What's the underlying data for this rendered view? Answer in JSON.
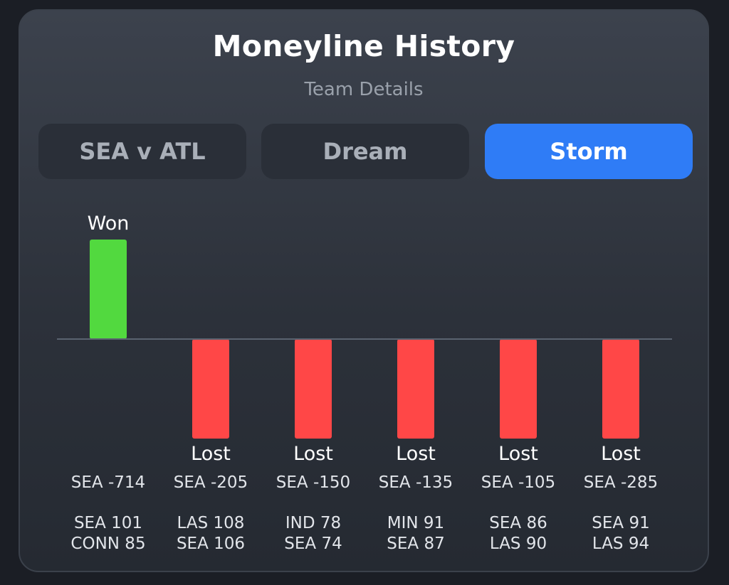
{
  "header": {
    "title": "Moneyline History",
    "subtitle": "Team Details"
  },
  "tabs": [
    {
      "label": "SEA v ATL",
      "active": false
    },
    {
      "label": "Dream",
      "active": false
    },
    {
      "label": "Storm",
      "active": true
    }
  ],
  "colors": {
    "won": "#52d93f",
    "lost": "#ff4747",
    "baseline": "#5a6370",
    "accent": "#2f7cf6"
  },
  "chart_data": {
    "type": "bar",
    "categories": [
      "SEA -714",
      "SEA -205",
      "SEA -150",
      "SEA -135",
      "SEA -105",
      "SEA -285"
    ],
    "values": [
      1,
      -1,
      -1,
      -1,
      -1,
      -1
    ],
    "results": [
      "Won",
      "Lost",
      "Lost",
      "Lost",
      "Lost",
      "Lost"
    ],
    "scores": [
      [
        "SEA 101",
        "CONN 85"
      ],
      [
        "LAS 108",
        "SEA 106"
      ],
      [
        "IND 78",
        "SEA 74"
      ],
      [
        "MIN 91",
        "SEA 87"
      ],
      [
        "SEA 86",
        "LAS 90"
      ],
      [
        "SEA 91",
        "LAS 94"
      ]
    ],
    "ylim": [
      -1,
      1
    ],
    "grid": false
  }
}
